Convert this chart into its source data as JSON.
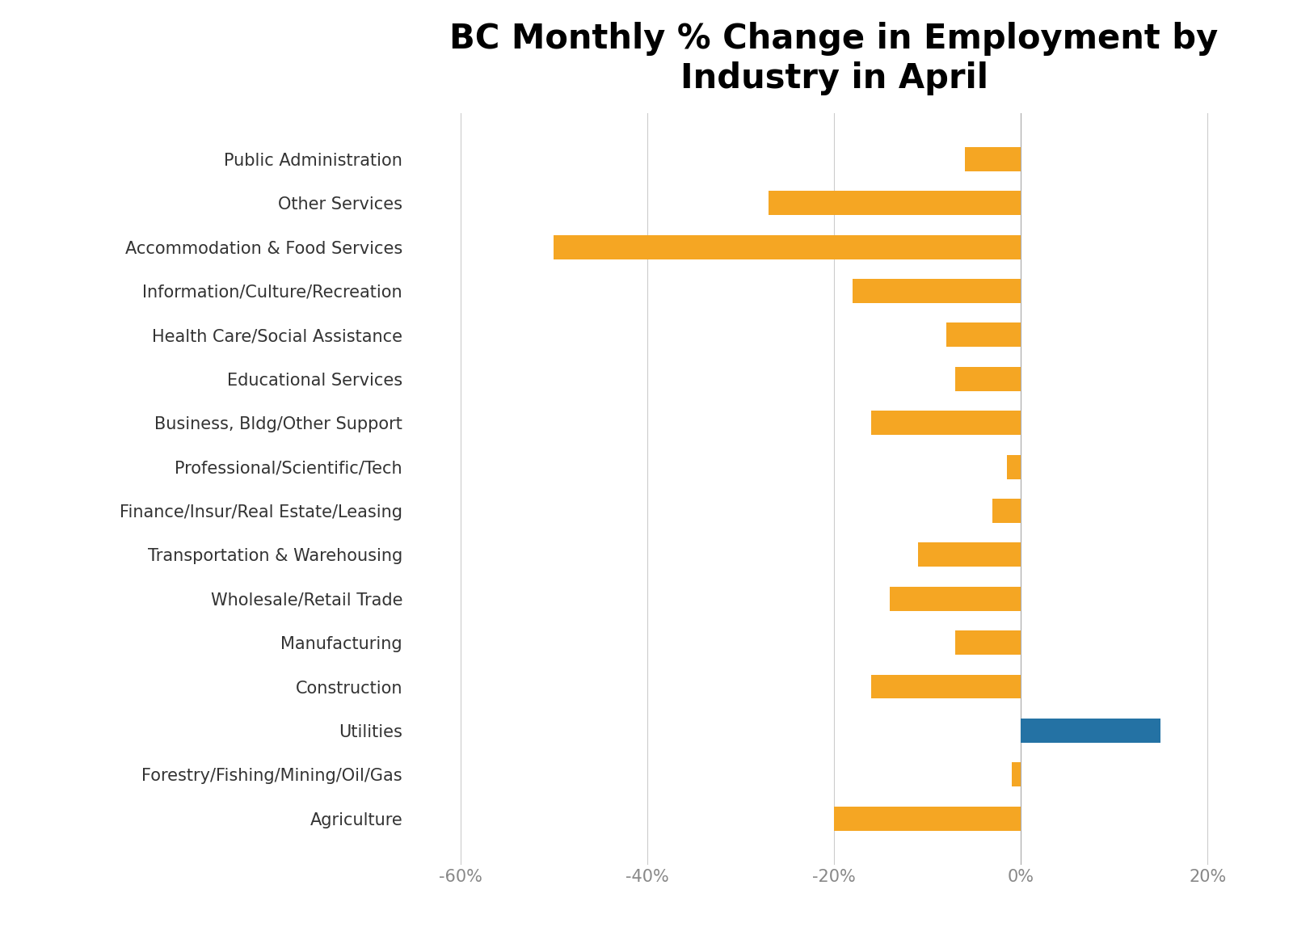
{
  "title": "BC Monthly % Change in Employment by\nIndustry in April",
  "categories": [
    "Public Administration",
    "Other Services",
    "Accommodation & Food Services",
    "Information/Culture/Recreation",
    "Health Care/Social Assistance",
    "Educational Services",
    "Business, Bldg/Other Support",
    "Professional/Scientific/Tech",
    "Finance/Insur/Real Estate/Leasing",
    "Transportation & Warehousing",
    "Wholesale/Retail Trade",
    "Manufacturing",
    "Construction",
    "Utilities",
    "Forestry/Fishing/Mining/Oil/Gas",
    "Agriculture"
  ],
  "values": [
    -6,
    -27,
    -50,
    -18,
    -8,
    -7,
    -16,
    -1.5,
    -3,
    -11,
    -14,
    -7,
    -16,
    15,
    -1,
    -20
  ],
  "bar_colors": [
    "#F5A623",
    "#F5A623",
    "#F5A623",
    "#F5A623",
    "#F5A623",
    "#F5A623",
    "#F5A623",
    "#F5A623",
    "#F5A623",
    "#F5A623",
    "#F5A623",
    "#F5A623",
    "#F5A623",
    "#2472A4",
    "#F5A623",
    "#F5A623"
  ],
  "xlim": [
    -65,
    25
  ],
  "xticks": [
    -60,
    -40,
    -20,
    0,
    20
  ],
  "xticklabels": [
    "-60%",
    "-40%",
    "-20%",
    "0%",
    "20%"
  ],
  "title_fontsize": 30,
  "label_fontsize": 15,
  "tick_fontsize": 15,
  "background_color": "#FFFFFF",
  "bar_height": 0.55,
  "grid_color": "#CCCCCC",
  "grid_linewidth": 0.8,
  "label_color": "#333333",
  "tick_color": "#888888"
}
